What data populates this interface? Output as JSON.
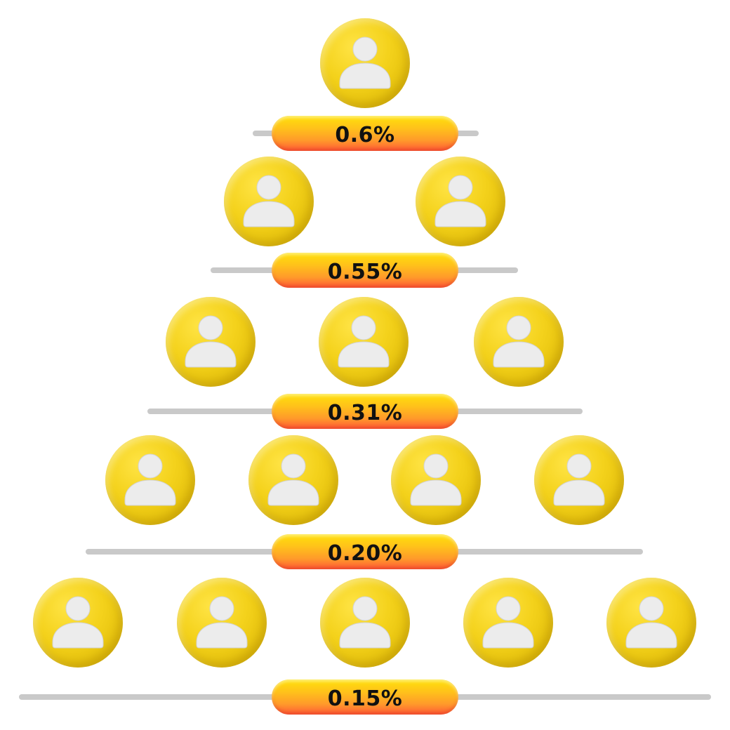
{
  "diagram": {
    "kind": "pyramid",
    "person_icon": "person-icon",
    "colors": {
      "avatar": "#f4d21c",
      "pill_top": "#ffe10a",
      "pill_bottom": "#ff5a38",
      "line": "#c9c9c9",
      "label": "#111111"
    },
    "tiers": [
      {
        "people": 1,
        "label": "0.6%"
      },
      {
        "people": 2,
        "label": "0.55%"
      },
      {
        "people": 3,
        "label": "0.31%"
      },
      {
        "people": 4,
        "label": "0.20%"
      },
      {
        "people": 5,
        "label": "0.15%"
      }
    ]
  }
}
